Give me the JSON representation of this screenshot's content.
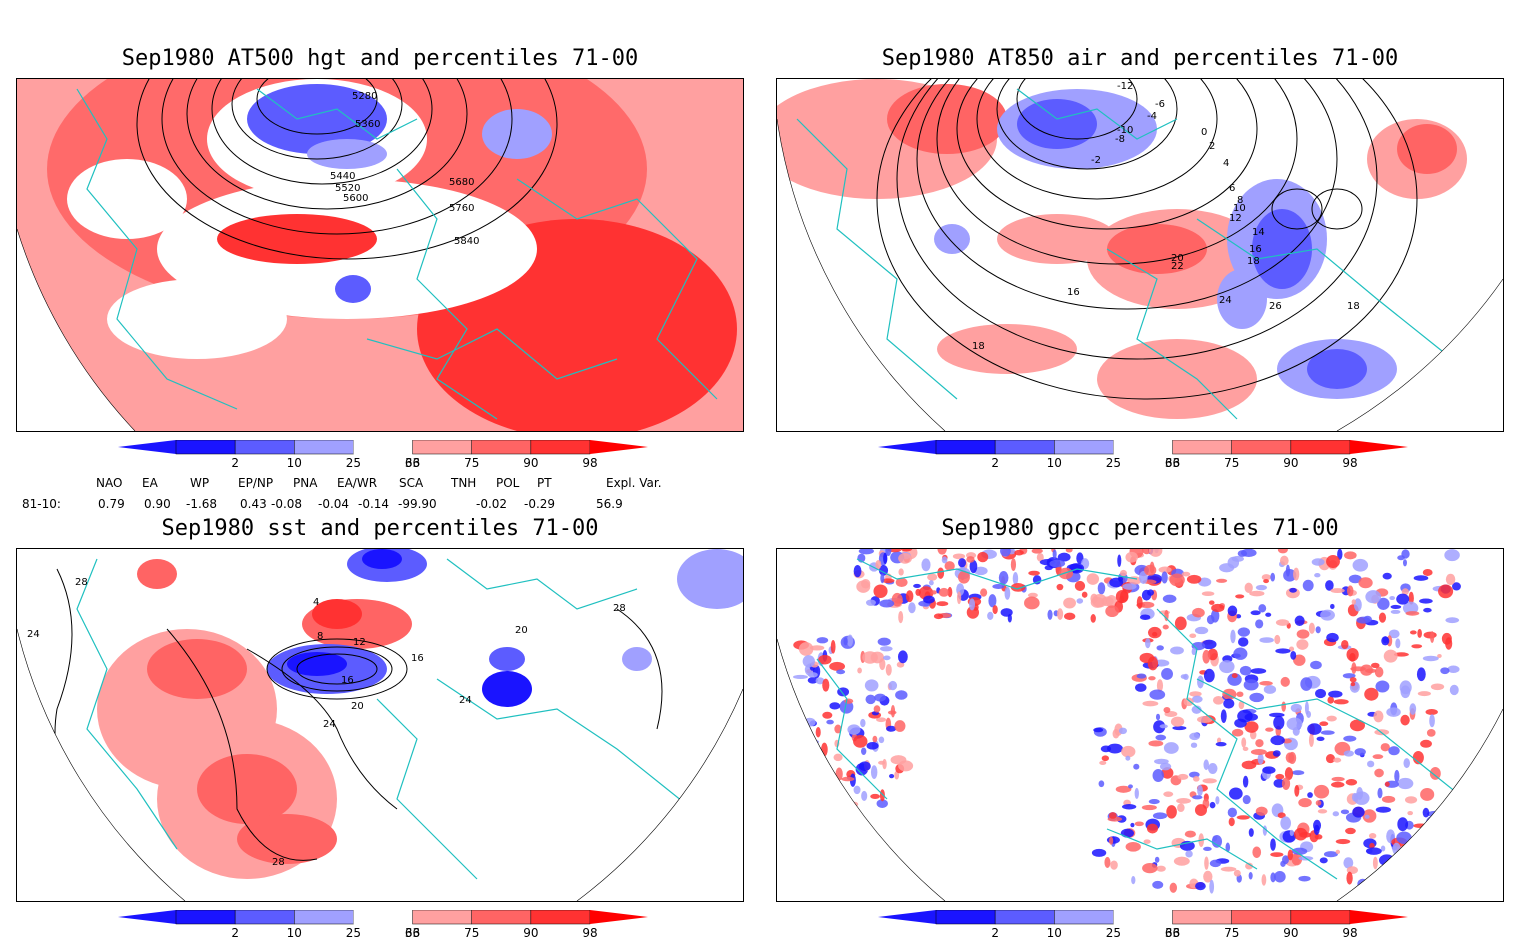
{
  "colors": {
    "blue_dark": "#1a14ff",
    "blue_mid": "#5c5cff",
    "blue_light": "#a0a0ff",
    "red_light": "#ffa0a0",
    "red_mid": "#ff6464",
    "red_dark": "#ff3232",
    "red_max": "#ff0000",
    "coast": "#20c0c0"
  },
  "panels": [
    {
      "title": "Sep1980 AT500 hgt and percentiles 71-00",
      "contour_labels": [
        "5280",
        "5360",
        "5440",
        "5520",
        "5600",
        "5680",
        "5760",
        "5840"
      ]
    },
    {
      "title": "Sep1980 AT850 air and percentiles 71-00",
      "contour_labels": [
        "-12",
        "-6",
        "-4",
        "-10",
        "-8",
        "-2",
        "0",
        "2",
        "4",
        "6",
        "8",
        "10",
        "12",
        "14",
        "16",
        "18",
        "20",
        "22",
        "24",
        "26",
        "18",
        "16",
        "18"
      ]
    },
    {
      "title": "Sep1980 sst and percentiles 71-00",
      "contour_labels": [
        "28",
        "24",
        "4",
        "8",
        "12",
        "16",
        "16",
        "20",
        "24",
        "28",
        "20",
        "24",
        "28"
      ]
    },
    {
      "title": "Sep1980 gpcc percentiles 71-00",
      "contour_labels": []
    }
  ],
  "colorbar_ticks": [
    "2",
    "10",
    "25",
    "33",
    "66",
    "75",
    "90",
    "98"
  ],
  "indices": {
    "headers": [
      "NAO",
      "EA",
      "WP",
      "EP/NP",
      "PNA",
      "EA/WR",
      "SCA",
      "TNH",
      "POL",
      "PT",
      "Expl. Var."
    ],
    "row_label": "81-10:",
    "values": [
      "0.79",
      "0.90",
      "-1.68",
      "0.43",
      "-0.08",
      "-0.04",
      "-0.14",
      "-99.90",
      "-0.02",
      "-0.29",
      "56.9"
    ]
  }
}
